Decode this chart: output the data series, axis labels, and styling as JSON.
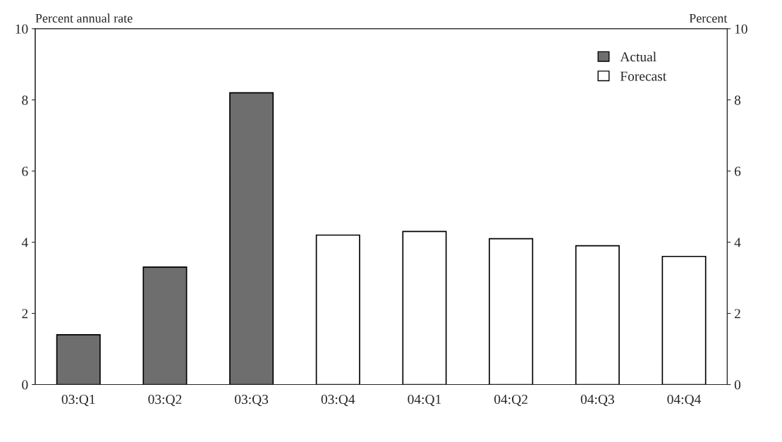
{
  "chart_data": {
    "type": "bar",
    "ylabel": "Percent annual rate",
    "y2label": "Percent",
    "categories": [
      "03:Q1",
      "03:Q2",
      "03:Q3",
      "03:Q4",
      "04:Q1",
      "04:Q2",
      "04:Q3",
      "04:Q4"
    ],
    "series": [
      {
        "name": "Actual",
        "color": "#6e6e6e",
        "values": [
          1.4,
          3.3,
          8.2,
          null,
          null,
          null,
          null,
          null
        ]
      },
      {
        "name": "Forecast",
        "color": "#ffffff",
        "values": [
          null,
          null,
          null,
          4.2,
          4.3,
          4.1,
          3.9,
          3.6
        ]
      }
    ],
    "ylim": [
      0,
      10
    ],
    "yticks": [
      0,
      2,
      4,
      6,
      8,
      10
    ],
    "y2lim": [
      0,
      10
    ],
    "y2ticks": [
      0,
      2,
      4,
      6,
      8,
      10
    ],
    "grid": false,
    "legend": "top right"
  }
}
